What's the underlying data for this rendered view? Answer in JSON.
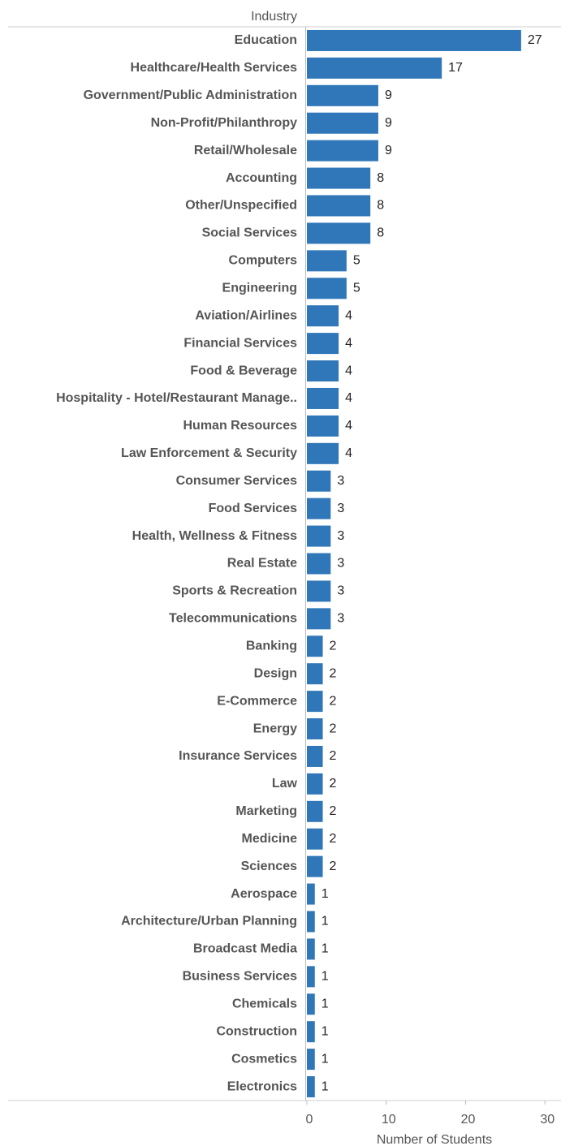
{
  "chart_data": {
    "type": "bar",
    "orientation": "horizontal",
    "ylabel": "Industry",
    "xlabel": "Number of Students",
    "categories": [
      "Education",
      "Healthcare/Health Services",
      "Government/Public Administration",
      "Non-Profit/Philanthropy",
      "Retail/Wholesale",
      "Accounting",
      "Other/Unspecified",
      "Social Services",
      "Computers",
      "Engineering",
      "Aviation/Airlines",
      "Financial Services",
      "Food & Beverage",
      "Hospitality - Hotel/Restaurant Manage..",
      "Human Resources",
      "Law Enforcement & Security",
      "Consumer Services",
      "Food Services",
      "Health, Wellness & Fitness",
      "Real Estate",
      "Sports & Recreation",
      "Telecommunications",
      "Banking",
      "Design",
      "E-Commerce",
      "Energy",
      "Insurance Services",
      "Law",
      "Marketing",
      "Medicine",
      "Sciences",
      "Aerospace",
      "Architecture/Urban Planning",
      "Broadcast Media",
      "Business Services",
      "Chemicals",
      "Construction",
      "Cosmetics",
      "Electronics"
    ],
    "values": [
      27,
      17,
      9,
      9,
      9,
      8,
      8,
      8,
      5,
      5,
      4,
      4,
      4,
      4,
      4,
      4,
      3,
      3,
      3,
      3,
      3,
      3,
      2,
      2,
      2,
      2,
      2,
      2,
      2,
      2,
      2,
      1,
      1,
      1,
      1,
      1,
      1,
      1,
      1
    ],
    "color": "#2f77b8",
    "xlim": [
      0,
      31
    ],
    "xticks": [
      0,
      10,
      20,
      30
    ]
  }
}
